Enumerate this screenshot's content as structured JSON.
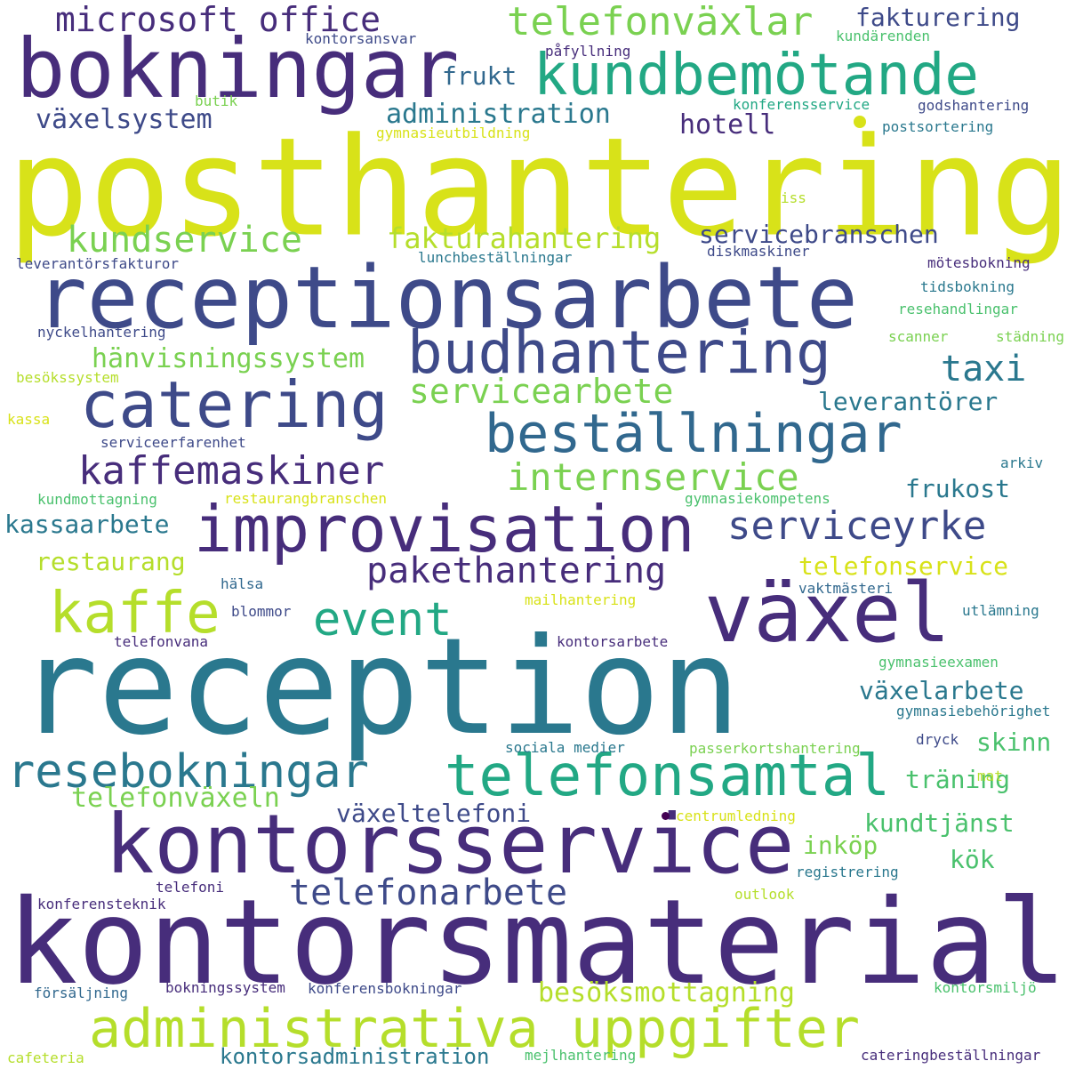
{
  "title": "",
  "palette": {
    "yellow": "#d8e219",
    "yellow_green": "#b5de2b",
    "light_green": "#7ad151",
    "green": "#4ac16d",
    "teal_green": "#22a884",
    "teal": "#2a788e",
    "blue": "#31688e",
    "indigo": "#3e4a89",
    "purple": "#472d7b",
    "dark_purple": "#440154"
  },
  "words": [
    {
      "text": "posthantering",
      "weight": 100,
      "color": "yellow"
    },
    {
      "text": "reception",
      "weight": 98,
      "color": "teal"
    },
    {
      "text": "kontorsmaterial",
      "weight": 92,
      "color": "purple"
    },
    {
      "text": "receptionsarbete",
      "weight": 70,
      "color": "indigo"
    },
    {
      "text": "kontorsservice",
      "weight": 62,
      "color": "purple"
    },
    {
      "text": "bokningar",
      "weight": 58,
      "color": "purple"
    },
    {
      "text": "växel",
      "weight": 58,
      "color": "purple"
    },
    {
      "text": "kundbemötande",
      "weight": 52,
      "color": "teal_green"
    },
    {
      "text": "improvisation",
      "weight": 52,
      "color": "purple"
    },
    {
      "text": "catering",
      "weight": 50,
      "color": "indigo"
    },
    {
      "text": "administrativa uppgifter",
      "weight": 48,
      "color": "yellow_green"
    },
    {
      "text": "budhantering",
      "weight": 46,
      "color": "indigo"
    },
    {
      "text": "beställningar",
      "weight": 46,
      "color": "blue"
    },
    {
      "text": "telefonsamtal",
      "weight": 46,
      "color": "teal_green"
    },
    {
      "text": "kaffe",
      "weight": 45,
      "color": "yellow_green"
    },
    {
      "text": "resebokningar",
      "weight": 42,
      "color": "teal"
    },
    {
      "text": "kaffemaskiner",
      "weight": 36,
      "color": "purple"
    },
    {
      "text": "event",
      "weight": 34,
      "color": "teal_green"
    },
    {
      "text": "serviceyrke",
      "weight": 34,
      "color": "indigo"
    },
    {
      "text": "telefonväxlar",
      "weight": 30,
      "color": "light_green"
    },
    {
      "text": "internservice",
      "weight": 30,
      "color": "light_green"
    },
    {
      "text": "pakethantering",
      "weight": 30,
      "color": "purple"
    },
    {
      "text": "microsoft office",
      "weight": 28,
      "color": "purple"
    },
    {
      "text": "kundservice",
      "weight": 28,
      "color": "light_green"
    },
    {
      "text": "servicearbete",
      "weight": 28,
      "color": "light_green"
    },
    {
      "text": "telefonarbete",
      "weight": 28,
      "color": "indigo"
    },
    {
      "text": "taxi",
      "weight": 28,
      "color": "teal"
    },
    {
      "text": "fakturahantering",
      "weight": 24,
      "color": "yellow_green"
    },
    {
      "text": "växelsystem",
      "weight": 22,
      "color": "indigo"
    },
    {
      "text": "administration",
      "weight": 22,
      "color": "teal"
    },
    {
      "text": "hotell",
      "weight": 22,
      "color": "purple"
    },
    {
      "text": "hänvisningssystem",
      "weight": 22,
      "color": "light_green"
    },
    {
      "text": "besöksmottagning",
      "weight": 22,
      "color": "yellow_green"
    },
    {
      "text": "telefonväxeln",
      "weight": 22,
      "color": "light_green"
    },
    {
      "text": "fakturering",
      "weight": 21,
      "color": "indigo"
    },
    {
      "text": "frukt",
      "weight": 20,
      "color": "blue"
    },
    {
      "text": "servicebranschen",
      "weight": 20,
      "color": "indigo"
    },
    {
      "text": "leverantörer",
      "weight": 20,
      "color": "teal"
    },
    {
      "text": "frukost",
      "weight": 20,
      "color": "teal"
    },
    {
      "text": "kassaarbete",
      "weight": 20,
      "color": "teal"
    },
    {
      "text": "restaurang",
      "weight": 20,
      "color": "yellow_green"
    },
    {
      "text": "telefonservice",
      "weight": 20,
      "color": "yellow"
    },
    {
      "text": "växelarbete",
      "weight": 20,
      "color": "teal"
    },
    {
      "text": "skinn",
      "weight": 20,
      "color": "green"
    },
    {
      "text": "träning",
      "weight": 20,
      "color": "green"
    },
    {
      "text": "växeltelefoni",
      "weight": 20,
      "color": "indigo"
    },
    {
      "text": "kundtjänst",
      "weight": 20,
      "color": "green"
    },
    {
      "text": "inköp",
      "weight": 20,
      "color": "light_green"
    },
    {
      "text": "kök",
      "weight": 20,
      "color": "green"
    },
    {
      "text": "kontorsadministration",
      "weight": 18,
      "color": "teal"
    },
    {
      "text": "kontorsansvar",
      "weight": 13,
      "color": "indigo"
    },
    {
      "text": "påfyllning",
      "weight": 13,
      "color": "purple"
    },
    {
      "text": "kundärenden",
      "weight": 13,
      "color": "green"
    },
    {
      "text": "konferensservice",
      "weight": 13,
      "color": "teal_green"
    },
    {
      "text": "butik",
      "weight": 13,
      "color": "light_green"
    },
    {
      "text": "godshantering",
      "weight": 13,
      "color": "indigo"
    },
    {
      "text": "gymnasieutbildning",
      "weight": 13,
      "color": "yellow"
    },
    {
      "text": "postsortering",
      "weight": 13,
      "color": "teal"
    },
    {
      "text": "iss",
      "weight": 13,
      "color": "yellow_green"
    },
    {
      "text": "leverantörsfakturor",
      "weight": 13,
      "color": "indigo"
    },
    {
      "text": "lunchbeställningar",
      "weight": 13,
      "color": "teal"
    },
    {
      "text": "diskmaskiner",
      "weight": 13,
      "color": "indigo"
    },
    {
      "text": "mötesbokning",
      "weight": 13,
      "color": "purple"
    },
    {
      "text": "tidsbokning",
      "weight": 13,
      "color": "teal"
    },
    {
      "text": "resehandlingar",
      "weight": 13,
      "color": "green"
    },
    {
      "text": "nyckelhantering",
      "weight": 13,
      "color": "indigo"
    },
    {
      "text": "scanner",
      "weight": 13,
      "color": "light_green"
    },
    {
      "text": "städning",
      "weight": 13,
      "color": "light_green"
    },
    {
      "text": "besökssystem",
      "weight": 13,
      "color": "yellow_green"
    },
    {
      "text": "kassa",
      "weight": 13,
      "color": "yellow"
    },
    {
      "text": "serviceerfarenhet",
      "weight": 13,
      "color": "indigo"
    },
    {
      "text": "arkiv",
      "weight": 13,
      "color": "teal"
    },
    {
      "text": "kundmottagning",
      "weight": 13,
      "color": "green"
    },
    {
      "text": "restaurangbranschen",
      "weight": 13,
      "color": "yellow"
    },
    {
      "text": "gymnasiekompetens",
      "weight": 13,
      "color": "green"
    },
    {
      "text": "hälsa",
      "weight": 13,
      "color": "blue"
    },
    {
      "text": "vaktmästeri",
      "weight": 13,
      "color": "blue"
    },
    {
      "text": "mailhantering",
      "weight": 13,
      "color": "yellow"
    },
    {
      "text": "blommor",
      "weight": 13,
      "color": "indigo"
    },
    {
      "text": "utlämning",
      "weight": 13,
      "color": "teal"
    },
    {
      "text": "telefonvana",
      "weight": 13,
      "color": "purple"
    },
    {
      "text": "kontorsarbete",
      "weight": 13,
      "color": "purple"
    },
    {
      "text": "gymnasieexamen",
      "weight": 13,
      "color": "green"
    },
    {
      "text": "gymnasiebehörighet",
      "weight": 13,
      "color": "teal"
    },
    {
      "text": "sociala medier",
      "weight": 13,
      "color": "teal"
    },
    {
      "text": "passerkortshantering",
      "weight": 13,
      "color": "light_green"
    },
    {
      "text": "dryck",
      "weight": 13,
      "color": "indigo"
    },
    {
      "text": "mat",
      "weight": 13,
      "color": "yellow_green"
    },
    {
      "text": "centrumledning",
      "weight": 13,
      "color": "yellow"
    },
    {
      "text": "registrering",
      "weight": 13,
      "color": "teal"
    },
    {
      "text": "telefoni",
      "weight": 13,
      "color": "purple"
    },
    {
      "text": "konferensteknik",
      "weight": 13,
      "color": "purple"
    },
    {
      "text": "outlook",
      "weight": 13,
      "color": "yellow_green"
    },
    {
      "text": "försäljning",
      "weight": 13,
      "color": "blue"
    },
    {
      "text": "bokningssystem",
      "weight": 13,
      "color": "purple"
    },
    {
      "text": "konferensbokningar",
      "weight": 13,
      "color": "indigo"
    },
    {
      "text": "kontorsmiljö",
      "weight": 13,
      "color": "green"
    },
    {
      "text": "cafeteria",
      "weight": 13,
      "color": "yellow_green"
    },
    {
      "text": "mejlhantering",
      "weight": 13,
      "color": "green"
    },
    {
      "text": "cateringbeställningar",
      "weight": 13,
      "color": "purple"
    }
  ],
  "dots": [
    {
      "color": "yellow"
    },
    {
      "color": "dark_purple"
    }
  ]
}
